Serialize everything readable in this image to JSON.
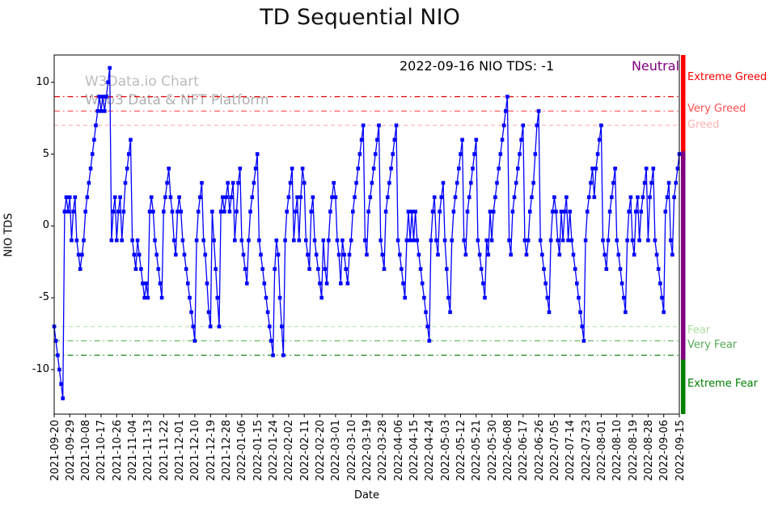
{
  "title": "TD Sequential NIO",
  "watermark": {
    "line1": "W3Data.io Chart",
    "line2": "Web3 Data & NFT Platform"
  },
  "annotation": {
    "text": "2022-09-16 NIO TDS: -1",
    "status": "Neutral",
    "status_color": "#800080"
  },
  "chart_data": {
    "type": "line",
    "title": "TD Sequential NIO",
    "xlabel": "Date",
    "ylabel": "NIO TDS",
    "ylim": [
      -13.1,
      11.9
    ],
    "yticks": [
      -10,
      -5,
      0,
      5,
      10
    ],
    "line_color": "#0000ff",
    "marker": "square",
    "grid": false,
    "start_date": "2021-09-20",
    "end_date": "2022-09-15",
    "x_tick_interval_days": 9,
    "x_tick_labels": [
      "2021-09-20",
      "2021-09-29",
      "2021-10-08",
      "2021-10-17",
      "2021-10-26",
      "2021-11-04",
      "2021-11-13",
      "2021-11-22",
      "2021-12-01",
      "2021-12-10",
      "2021-12-19",
      "2021-12-28",
      "2022-01-06",
      "2022-01-15",
      "2022-01-24",
      "2022-02-02",
      "2022-02-11",
      "2022-02-20",
      "2022-03-01",
      "2022-03-10",
      "2022-03-19",
      "2022-03-28",
      "2022-04-06",
      "2022-04-15",
      "2022-04-24",
      "2022-05-03",
      "2022-05-12",
      "2022-05-21",
      "2022-05-30",
      "2022-06-08",
      "2022-06-17",
      "2022-06-26",
      "2022-07-05",
      "2022-07-14",
      "2022-07-23",
      "2022-08-01",
      "2022-08-10",
      "2022-08-19",
      "2022-08-28",
      "2022-09-06",
      "2022-09-15"
    ],
    "values": [
      -7,
      -8,
      -9,
      -10,
      -11,
      -12,
      1,
      2,
      1,
      2,
      -1,
      1,
      2,
      -1,
      -2,
      -3,
      -2,
      -1,
      1,
      2,
      3,
      4,
      5,
      6,
      7,
      8,
      9,
      8,
      9,
      8,
      9,
      10,
      11,
      -1,
      1,
      2,
      -1,
      1,
      2,
      -1,
      1,
      3,
      4,
      5,
      6,
      -1,
      -2,
      -3,
      -1,
      -2,
      -3,
      -4,
      -5,
      -4,
      -5,
      1,
      2,
      1,
      -1,
      -2,
      -3,
      -4,
      -5,
      1,
      2,
      3,
      4,
      2,
      1,
      -1,
      -2,
      1,
      2,
      1,
      -1,
      -2,
      -3,
      -4,
      -5,
      -6,
      -7,
      -8,
      -1,
      1,
      2,
      3,
      -1,
      -2,
      -4,
      -6,
      -7,
      1,
      -1,
      -3,
      -5,
      -7,
      1,
      2,
      1,
      2,
      3,
      1,
      2,
      3,
      -1,
      1,
      3,
      4,
      -1,
      -2,
      -3,
      -4,
      -1,
      1,
      2,
      3,
      4,
      5,
      -1,
      -2,
      -3,
      -4,
      -5,
      -6,
      -7,
      -8,
      -9,
      -3,
      -1,
      -2,
      -5,
      -7,
      -9,
      -1,
      1,
      2,
      3,
      4,
      -1,
      1,
      2,
      -1,
      2,
      4,
      3,
      -1,
      -2,
      -3,
      1,
      2,
      -1,
      -2,
      -3,
      -4,
      -5,
      -1,
      -3,
      -4,
      -1,
      1,
      2,
      3,
      2,
      -1,
      -2,
      -4,
      -1,
      -2,
      -3,
      -4,
      -2,
      -1,
      1,
      2,
      3,
      4,
      5,
      6,
      7,
      -1,
      -2,
      1,
      2,
      3,
      4,
      5,
      6,
      7,
      -1,
      -2,
      -3,
      1,
      2,
      3,
      4,
      5,
      6,
      7,
      -1,
      -2,
      -3,
      -4,
      -5,
      -1,
      1,
      -1,
      1,
      -1,
      1,
      -1,
      -2,
      -3,
      -4,
      -5,
      -6,
      -7,
      -8,
      -1,
      1,
      2,
      -1,
      -2,
      1,
      2,
      3,
      -1,
      -3,
      -5,
      -6,
      -1,
      1,
      2,
      3,
      4,
      5,
      6,
      -1,
      -2,
      1,
      2,
      3,
      4,
      5,
      6,
      -1,
      -2,
      -3,
      -4,
      -5,
      -1,
      -2,
      1,
      -1,
      1,
      2,
      3,
      4,
      5,
      6,
      7,
      8,
      9,
      -1,
      -2,
      1,
      2,
      3,
      4,
      5,
      6,
      7,
      -1,
      -2,
      -1,
      1,
      2,
      3,
      5,
      7,
      8,
      -1,
      -2,
      -3,
      -4,
      -5,
      -6,
      -1,
      1,
      2,
      1,
      -1,
      -2,
      1,
      -1,
      1,
      2,
      -1,
      1,
      -1,
      -2,
      -3,
      -4,
      -5,
      -6,
      -7,
      -8,
      -1,
      1,
      2,
      3,
      4,
      2,
      4,
      5,
      6,
      7,
      -1,
      -2,
      -3,
      -1,
      1,
      2,
      3,
      4,
      -1,
      -2,
      -3,
      -4,
      -5,
      -6,
      -1,
      1,
      2,
      -1,
      -2,
      1,
      2,
      -1,
      1,
      2,
      3,
      4,
      -1,
      2,
      3,
      4,
      -1,
      -2,
      -3,
      -4,
      -5,
      -6,
      1,
      2,
      3,
      -1,
      -2,
      2,
      3,
      4,
      5
    ],
    "threshold_lines": [
      {
        "y": 9,
        "color": "#e60000",
        "dash": "dashdot"
      },
      {
        "y": 8,
        "color": "#ff4d4d",
        "dash": "dashdot"
      },
      {
        "y": 7,
        "color": "#ffb3b3",
        "dash": "dashed"
      },
      {
        "y": -7,
        "color": "#b3e6b3",
        "dash": "dashed"
      },
      {
        "y": -8,
        "color": "#66bb66",
        "dash": "dashdot"
      },
      {
        "y": -9,
        "color": "#008000",
        "dash": "dashdot"
      }
    ],
    "sentiment_labels": [
      {
        "text": "Extreme Greed",
        "color": "#ff0000",
        "y": 10.3
      },
      {
        "text": "Very Greed",
        "color": "#ff4d4d",
        "y": 8.1
      },
      {
        "text": "Greed",
        "color": "#ffb3b3",
        "y": 7.0
      },
      {
        "text": "Fear",
        "color": "#aadd9f",
        "y": -7.3
      },
      {
        "text": "Very Fear",
        "color": "#55aa55",
        "y": -8.3
      },
      {
        "text": "Extreme Fear",
        "color": "#008000",
        "y": -11.0
      }
    ],
    "sentiment_bar": [
      {
        "from": 11.9,
        "to": 5.2,
        "color": "#ff0000"
      },
      {
        "from": 5.2,
        "to": -9.3,
        "color": "#800080"
      },
      {
        "from": -9.3,
        "to": -13.1,
        "color": "#008000"
      }
    ]
  }
}
